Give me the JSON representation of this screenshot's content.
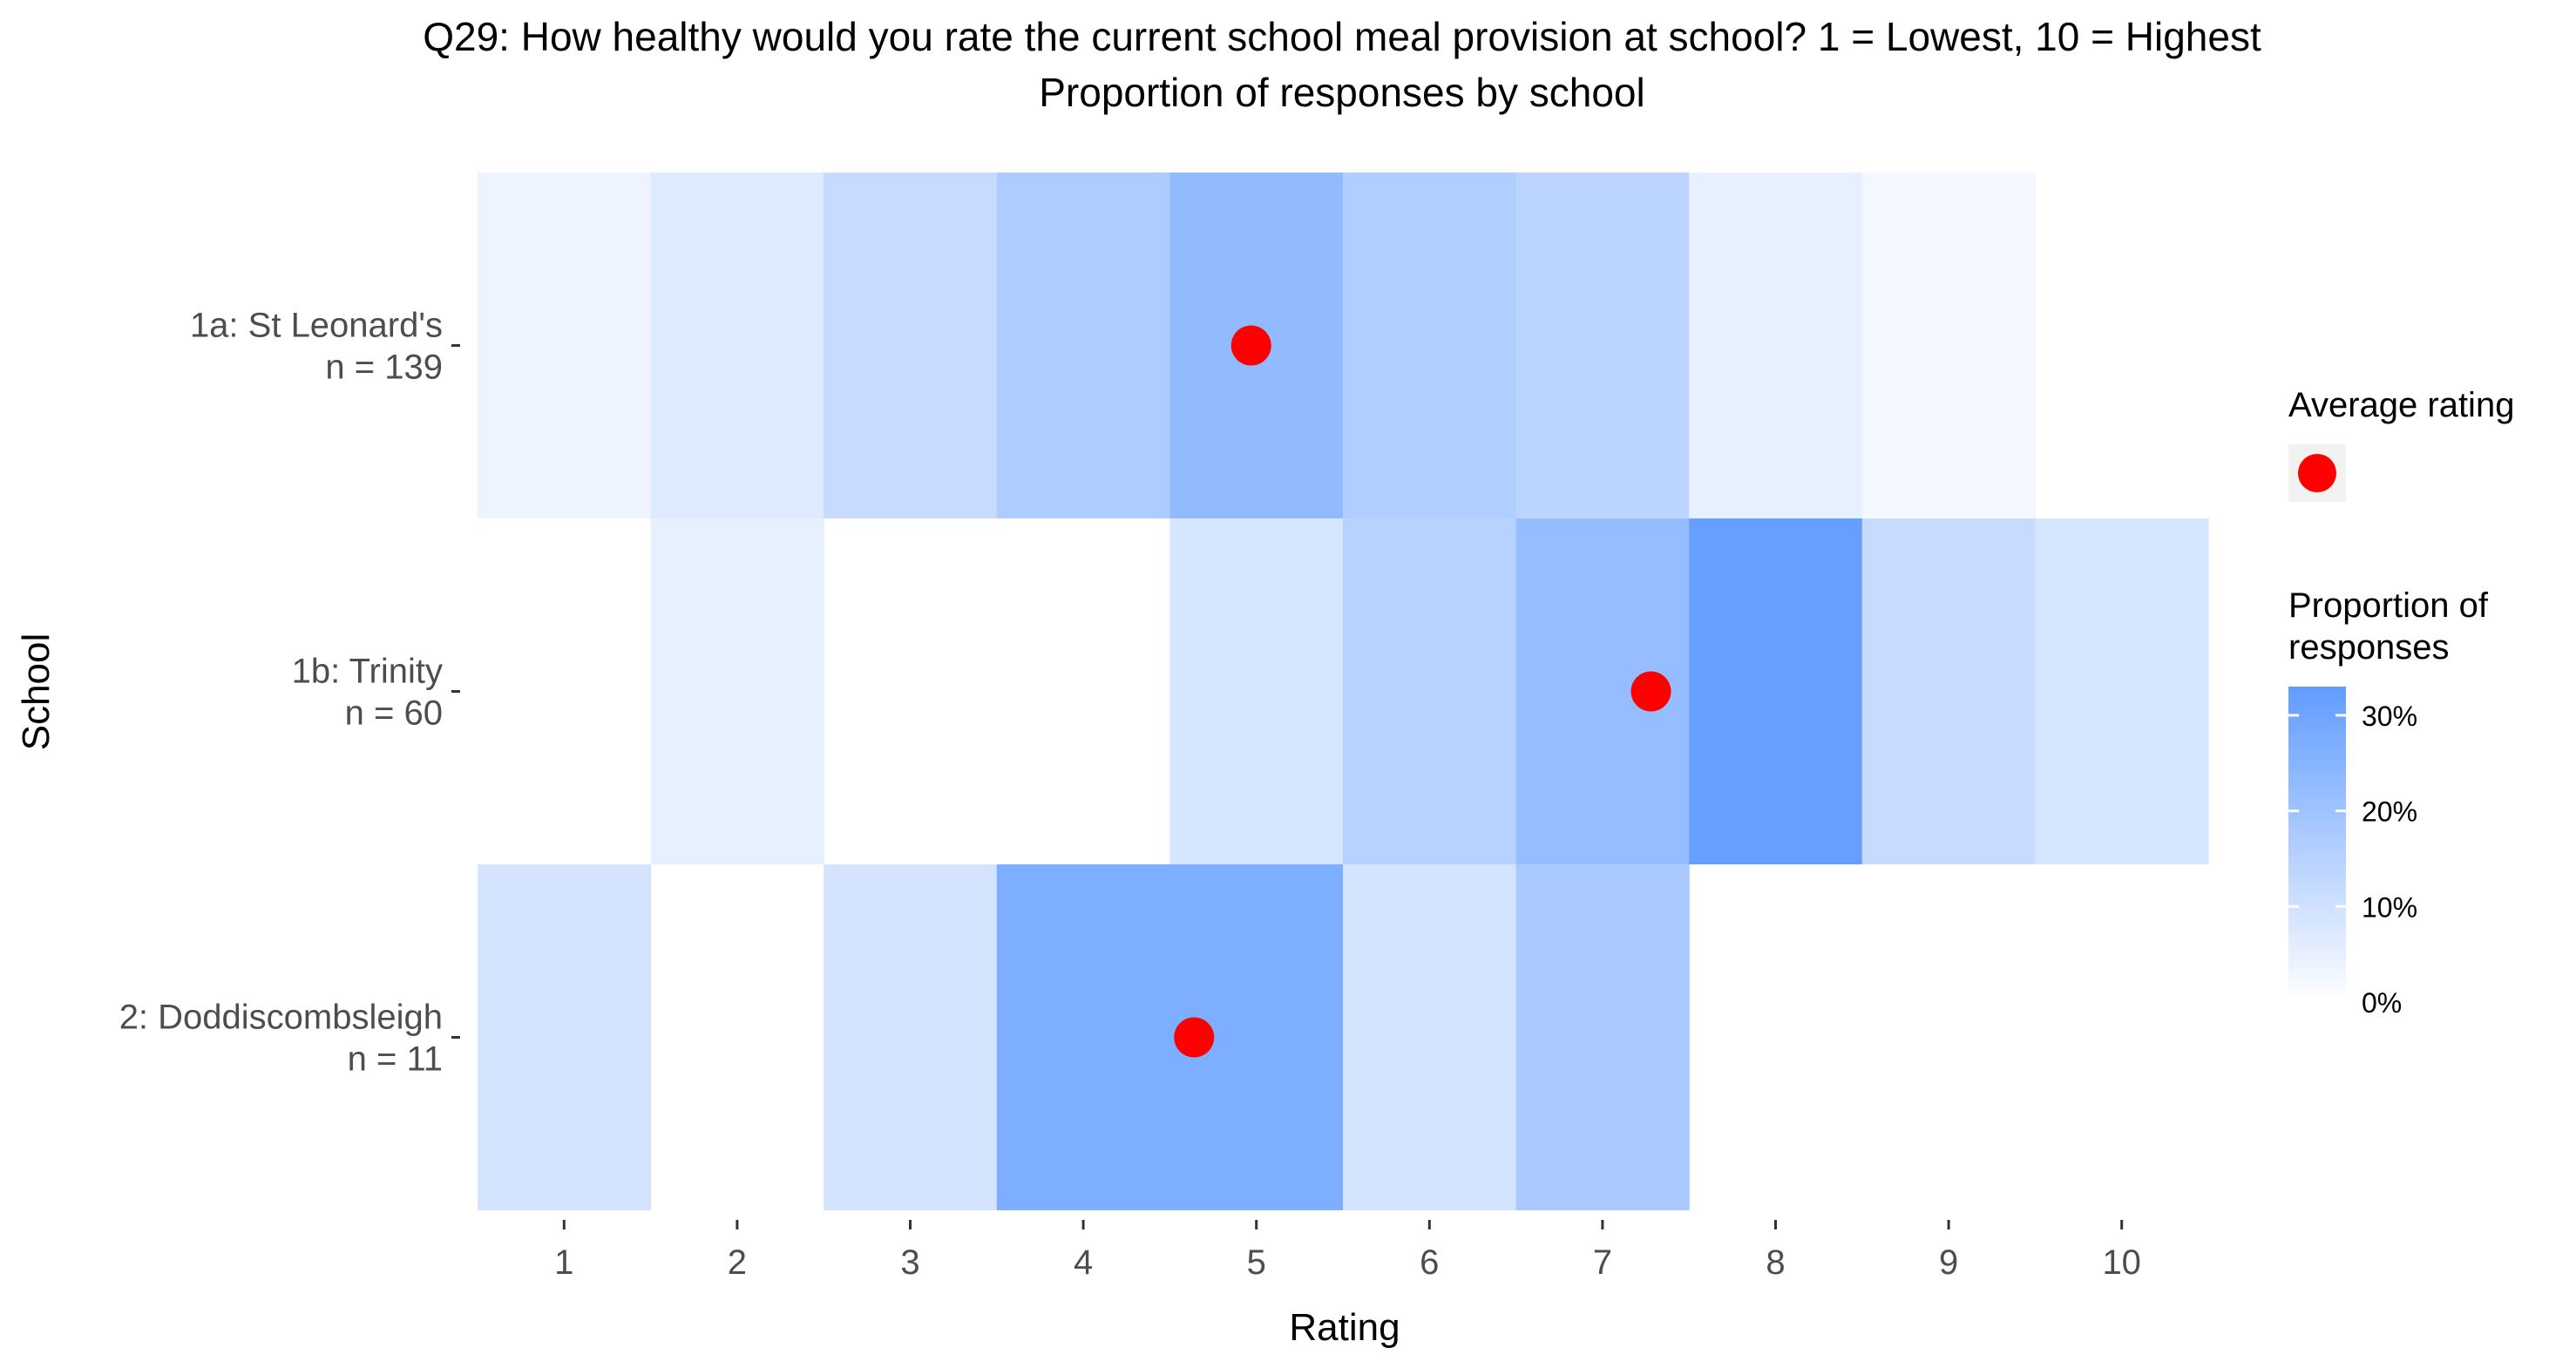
{
  "chart_data": {
    "type": "heatmap",
    "title": "Q29: How healthy would you rate the current school meal provision at school? 1 = Lowest, 10 = Highest",
    "subtitle": "Proportion of responses by school",
    "xlabel": "Rating",
    "ylabel": "School",
    "x_categories": [
      "1",
      "2",
      "3",
      "4",
      "5",
      "6",
      "7",
      "8",
      "9",
      "10"
    ],
    "rows": [
      {
        "school": "1a: St Leonard's",
        "n_label": "n = 139",
        "values": [
          0.036,
          0.07,
          0.12,
          0.17,
          0.23,
          0.165,
          0.14,
          0.05,
          0.025,
          null
        ],
        "average": 4.97
      },
      {
        "school": "1b: Trinity",
        "n_label": "n = 60",
        "values": [
          null,
          0.05,
          null,
          null,
          0.083,
          0.15,
          0.22,
          0.32,
          0.12,
          0.083
        ],
        "average": 7.28
      },
      {
        "school": "2: Doddiscombsleigh",
        "n_label": "n = 11",
        "values": [
          0.09,
          null,
          0.09,
          0.27,
          0.27,
          0.09,
          0.18,
          null,
          null,
          null
        ],
        "average": 4.64
      }
    ],
    "fill_scale": {
      "min": 0,
      "max": 0.33,
      "low_color": "#ffffff",
      "high_color": "#619cff"
    },
    "legend": {
      "avg_title": "Average rating",
      "fill_title_line1": "Proportion of",
      "fill_title_line2": "responses",
      "fill_ticks": [
        {
          "value": 0,
          "label": "0%"
        },
        {
          "value": 0.1,
          "label": "10%"
        },
        {
          "value": 0.2,
          "label": "20%"
        },
        {
          "value": 0.3,
          "label": "30%"
        }
      ],
      "placement": "right"
    },
    "point_color": "#ff0000",
    "grid": false
  }
}
